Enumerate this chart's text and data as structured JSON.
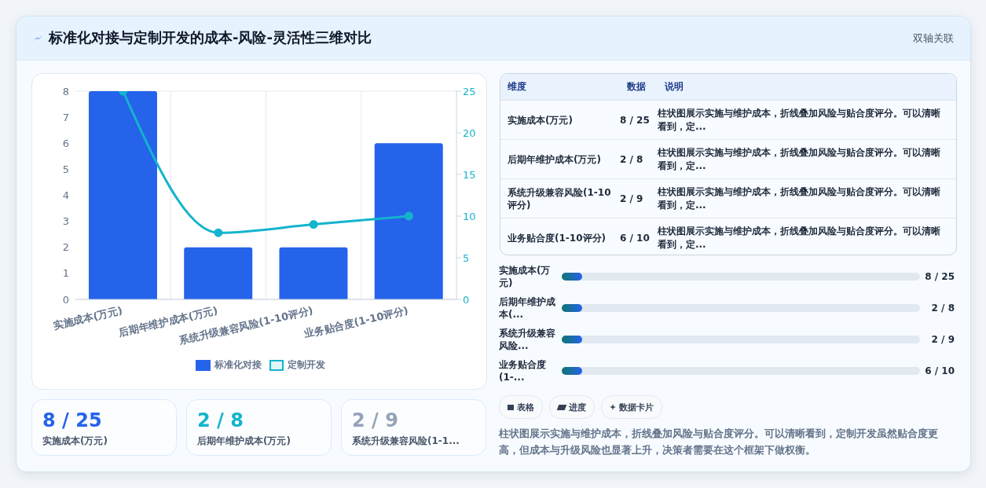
{
  "chart_data": [
    {
      "type": "bar",
      "title": "标准化对接与定制开发的成本-风险-灵活性三维对比",
      "categories": [
        "实施成本(万元)",
        "后期年维护成本(万元)",
        "系统升级兼容风险(1-10评分)",
        "业务贴合度(1-10评分)"
      ],
      "series": [
        {
          "name": "标准化对接",
          "color": "#2563eb",
          "values": [
            8,
            2,
            2,
            6
          ]
        },
        {
          "name": "定制开发",
          "type": "line",
          "axis": "y2",
          "color": "#14b4cc",
          "values": [
            25,
            8,
            9,
            10
          ]
        }
      ],
      "ylim": [
        0,
        8
      ],
      "yticks": [
        0,
        1,
        2,
        3,
        4,
        5,
        6,
        7,
        8
      ],
      "y2lim": [
        0,
        25
      ],
      "y2ticks": [
        0,
        5,
        10,
        15,
        20,
        25
      ],
      "grid": true,
      "legend": "bottom",
      "marker": "circle"
    },
    {
      "type": "other",
      "title": "双轴关联",
      "categories": [
        "实施成本(万元)",
        "后期年维护成本(万元)",
        "系统升级兼容风险(1-10评分)",
        "业务贴合度(1-10评分)"
      ],
      "value_labels": [
        "8 / 25",
        "2 / 8",
        "2 / 9",
        "6 / 10"
      ],
      "annotations": [
        "维度",
        "数据",
        "说明",
        "柱状图展示实施与维护成本，折线叠加风险与贴合度评分。可以清晰看到，定...",
        "柱状图展示实施与维护成本，折线叠加风险与贴合度评分。可以清晰看到，定...",
        "柱状图展示实施与维护成本，折线叠加风险与贴合度评分。可以清晰看到，定...",
        "柱状图展示实施与维护成本，折线叠加风险与贴合度评分。可以清晰看到，定...",
        "实施成本(万元)",
        "后期年维护成本(...",
        "系统升级兼容风险...",
        "业务贴合度(1-...",
        "表格",
        "进度",
        "数据卡片",
        "柱状图展示实施与维护成本，折线叠加风险与贴合度评分。可以清晰看到，定制开发虽然贴合度更高，但成本与升级风险也显著上升，决策者需要在这个框架下做权衡。",
        "实施成本(万元)",
        "后期年维护成本(万元)",
        "系统升级兼容风险(1-1..."
      ]
    }
  ]
}
